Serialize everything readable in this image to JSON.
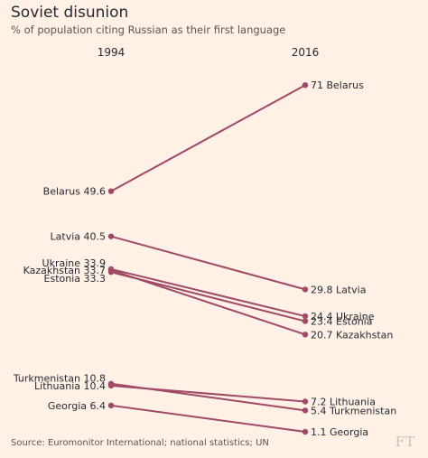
{
  "chart_data": {
    "type": "line",
    "title": "Soviet disunion",
    "subtitle": "% of population citing Russian as their first language",
    "x": [
      "1994",
      "2016"
    ],
    "ylim": [
      0,
      75
    ],
    "grid": false,
    "legend": "none",
    "series": [
      {
        "name": "Belarus",
        "values": [
          49.6,
          71
        ]
      },
      {
        "name": "Latvia",
        "values": [
          40.5,
          29.8
        ]
      },
      {
        "name": "Ukraine",
        "values": [
          33.9,
          24.4
        ]
      },
      {
        "name": "Kazakhstan",
        "values": [
          33.7,
          20.7
        ]
      },
      {
        "name": "Estonia",
        "values": [
          33.3,
          23.4
        ]
      },
      {
        "name": "Turkmenistan",
        "values": [
          10.8,
          5.4
        ]
      },
      {
        "name": "Lithuania",
        "values": [
          10.4,
          7.2
        ]
      },
      {
        "name": "Georgia",
        "values": [
          6.4,
          1.1
        ]
      }
    ],
    "start_labels": [
      "Belarus 49.6",
      "Latvia 40.5",
      "Ukraine 33.9",
      "Kazakhstan 33.7",
      "Estonia 33.3",
      "Turkmenistan 10.8",
      "Lithuania 10.4",
      "Georgia 6.4"
    ],
    "end_labels": [
      "71 Belarus",
      "29.8 Latvia",
      "24.4 Ukraine",
      "20.7 Kazakhstan",
      "23.4 Estonia",
      "5.4 Turkmenistan",
      "7.2 Lithuania",
      "1.1 Georgia"
    ],
    "source": "Source: Euromonitor International; national statistics; UN",
    "logo": "FT",
    "colors": {
      "background": "#fff1e5",
      "line": "#a04a68",
      "text": "#262a33",
      "muted": "#5c5551"
    }
  }
}
